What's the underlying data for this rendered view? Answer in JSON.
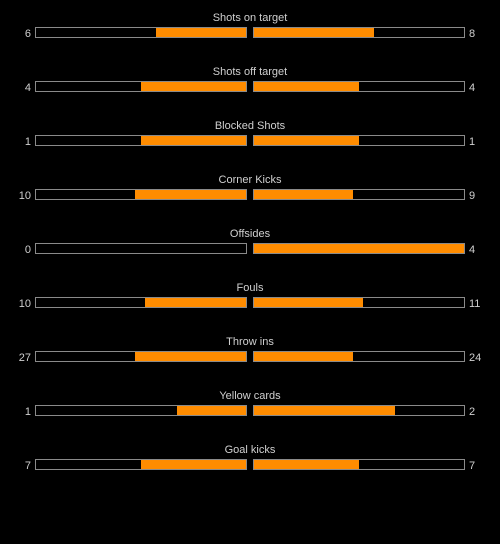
{
  "colors": {
    "background": "#000000",
    "bar_fill": "#ff8c00",
    "bar_border": "#8a8a8a",
    "text": "#d0d0d0"
  },
  "stats": [
    {
      "label": "Shots on target",
      "home": 6,
      "away": 8,
      "home_share": 0.43,
      "away_share": 0.57
    },
    {
      "label": "Shots off target",
      "home": 4,
      "away": 4,
      "home_share": 0.5,
      "away_share": 0.5
    },
    {
      "label": "Blocked Shots",
      "home": 1,
      "away": 1,
      "home_share": 0.5,
      "away_share": 0.5
    },
    {
      "label": "Corner Kicks",
      "home": 10,
      "away": 9,
      "home_share": 0.53,
      "away_share": 0.47
    },
    {
      "label": "Offsides",
      "home": 0,
      "away": 4,
      "home_share": 0.0,
      "away_share": 1.0
    },
    {
      "label": "Fouls",
      "home": 10,
      "away": 11,
      "home_share": 0.48,
      "away_share": 0.52
    },
    {
      "label": "Throw ins",
      "home": 27,
      "away": 24,
      "home_share": 0.53,
      "away_share": 0.47
    },
    {
      "label": "Yellow cards",
      "home": 1,
      "away": 2,
      "home_share": 0.33,
      "away_share": 0.67
    },
    {
      "label": "Goal kicks",
      "home": 7,
      "away": 7,
      "home_share": 0.5,
      "away_share": 0.5
    }
  ]
}
